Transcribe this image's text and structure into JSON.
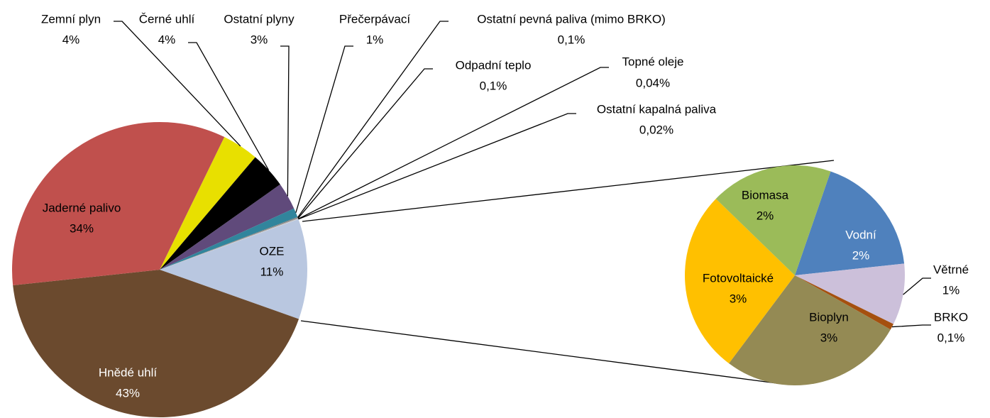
{
  "chart_data": [
    {
      "type": "pie",
      "categories": [
        "Zemní plyn",
        "Černé uhlí",
        "Ostatní plyny",
        "Přečerpávací",
        "Ostatní pevná paliva (mimo BRKO)",
        "Odpadní teplo",
        "Topné oleje",
        "Ostatní kapalná paliva",
        "OZE",
        "Hnědé uhlí",
        "Jaderné palivo"
      ],
      "values": [
        4,
        4,
        3,
        1,
        0.1,
        0.1,
        0.04,
        0.02,
        11,
        43,
        34
      ],
      "value_labels": [
        "4%",
        "4%",
        "3%",
        "1%",
        "0,1%",
        "0,1%",
        "0,04%",
        "0,02%",
        "11%",
        "43%",
        "34%"
      ],
      "colors": [
        "#e8e000",
        "#000000",
        "#604a7b",
        "#31859c",
        "#7f7f7f",
        "#a6a6a6",
        "#d9d9d9",
        "#bfbfbf",
        "#b9c7e0",
        "#6b4a2e",
        "#c0504d"
      ]
    },
    {
      "type": "pie",
      "categories": [
        "Vodní",
        "Větrné",
        "BRKO",
        "Bioplyn",
        "Fotovoltaické",
        "Biomasa"
      ],
      "values": [
        2,
        1,
        0.1,
        3,
        3,
        2
      ],
      "value_labels": [
        "2%",
        "1%",
        "0,1%",
        "3%",
        "3%",
        "2%"
      ],
      "colors": [
        "#4f81bd",
        "#ccc0da",
        "#a5500f",
        "#948a54",
        "#ffc000",
        "#9bbb59"
      ]
    }
  ]
}
